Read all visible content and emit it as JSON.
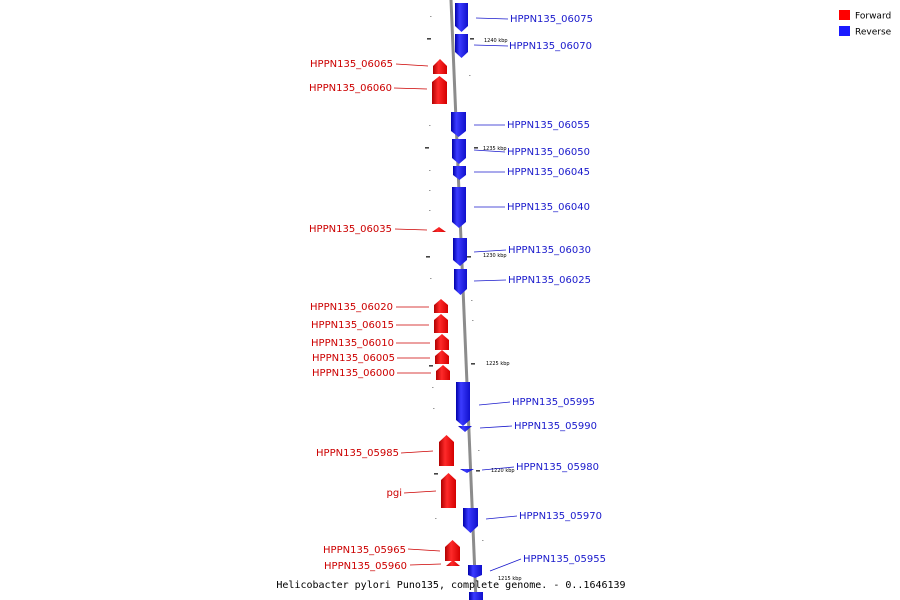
{
  "colors": {
    "forward": "#ff0000",
    "reverse": "#1a1aff",
    "forward_text": "#cc0000",
    "reverse_text": "#1a1acc",
    "backbone": "#888888"
  },
  "legend": {
    "forward": "Forward",
    "reverse": "Reverse"
  },
  "caption": "Helicobacter pylori Puno135, complete genome. - 0..1646139",
  "ticks": [
    "1240 kbp",
    "1235 kbp",
    "1230 kbp",
    "1225 kbp",
    "1220 kbp",
    "1215 kbp"
  ],
  "genes": {
    "forward": [
      "HPPN135_06065",
      "HPPN135_06060",
      "HPPN135_06035",
      "HPPN135_06020",
      "HPPN135_06015",
      "HPPN135_06010",
      "HPPN135_06005",
      "HPPN135_06000",
      "HPPN135_05985",
      "pgi",
      "HPPN135_05965",
      "HPPN135_05960"
    ],
    "reverse": [
      "HPPN135_06075",
      "HPPN135_06070",
      "HPPN135_06055",
      "HPPN135_06050",
      "HPPN135_06045",
      "HPPN135_06040",
      "HPPN135_06030",
      "HPPN135_06025",
      "HPPN135_05995",
      "HPPN135_05990",
      "HPPN135_05980",
      "HPPN135_05970",
      "HPPN135_05955"
    ]
  }
}
